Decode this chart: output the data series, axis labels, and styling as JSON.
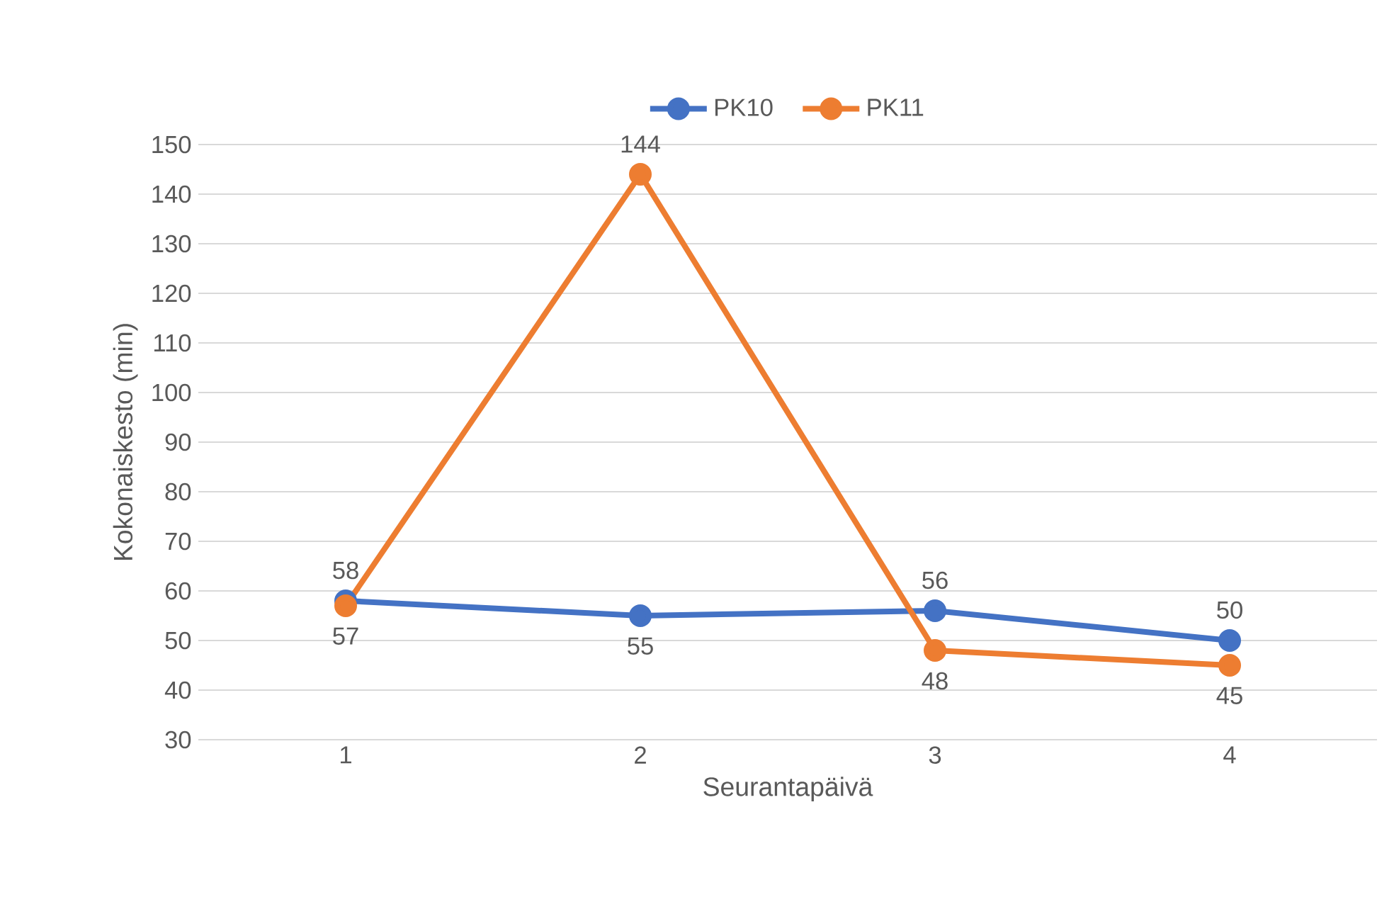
{
  "chart_data": {
    "type": "line",
    "xlabel": "Seurantapäivä",
    "ylabel": "Kokonaiskesto (min)",
    "categories": [
      "1",
      "2",
      "3",
      "4"
    ],
    "series": [
      {
        "name": "PK10",
        "color": "#4472c4",
        "values": [
          58,
          55,
          56,
          50
        ]
      },
      {
        "name": "PK11",
        "color": "#ed7d31",
        "values": [
          57,
          144,
          48,
          45
        ]
      }
    ],
    "ylim": [
      30,
      150
    ],
    "yticks": [
      30,
      40,
      50,
      60,
      70,
      80,
      90,
      100,
      110,
      120,
      130,
      140,
      150
    ],
    "grid": "y",
    "legend": "top",
    "marker": "circle",
    "line_style": "solid",
    "data_labels": true
  }
}
